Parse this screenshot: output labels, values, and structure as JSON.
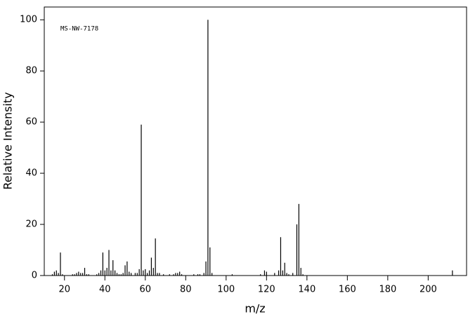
{
  "chart_data": {
    "type": "stem",
    "annotation": "MS-NW-7178",
    "x_label": "m/z",
    "y_label": "Relative Intensity",
    "color": "#000000",
    "xlim": [
      10,
      219
    ],
    "ylim": [
      0,
      105
    ],
    "xticks": [
      20,
      40,
      60,
      80,
      100,
      120,
      140,
      160,
      180,
      200
    ],
    "yticks": [
      0,
      20,
      40,
      60,
      80,
      100
    ],
    "x": [
      14,
      15,
      16,
      17,
      18,
      19,
      24,
      25,
      26,
      27,
      28,
      29,
      30,
      31,
      32,
      36,
      37,
      38,
      39,
      40,
      41,
      42,
      43,
      44,
      45,
      46,
      47,
      48,
      49,
      50,
      51,
      52,
      53,
      55,
      56,
      57,
      58,
      59,
      60,
      61,
      62,
      63,
      64,
      65,
      66,
      67,
      69,
      72,
      74,
      75,
      76,
      77,
      78,
      84,
      86,
      87,
      89,
      90,
      91,
      92,
      93,
      103,
      117,
      119,
      120,
      124,
      126,
      127,
      128,
      129,
      130,
      131,
      133,
      135,
      136,
      137,
      138,
      212
    ],
    "values": [
      0.5,
      1.5,
      2,
      1,
      9,
      0.5,
      0.5,
      0.5,
      1,
      1.5,
      1,
      1,
      3,
      0.5,
      0.5,
      0.5,
      1,
      2,
      9,
      2,
      3,
      10,
      2,
      6,
      2,
      1,
      0.5,
      0.5,
      1,
      4,
      5.5,
      1.5,
      1,
      1,
      1,
      2.5,
      59,
      2,
      2.5,
      1,
      2,
      7,
      3,
      14.5,
      1,
      1,
      0.5,
      0.5,
      0.5,
      1,
      1,
      1.5,
      0.5,
      0.5,
      0.5,
      0.5,
      1,
      5.5,
      100,
      11,
      1,
      0.5,
      0.5,
      2,
      1.5,
      1,
      2,
      15,
      2,
      5,
      1,
      0.5,
      1,
      20,
      28,
      3,
      0.5,
      2
    ]
  }
}
